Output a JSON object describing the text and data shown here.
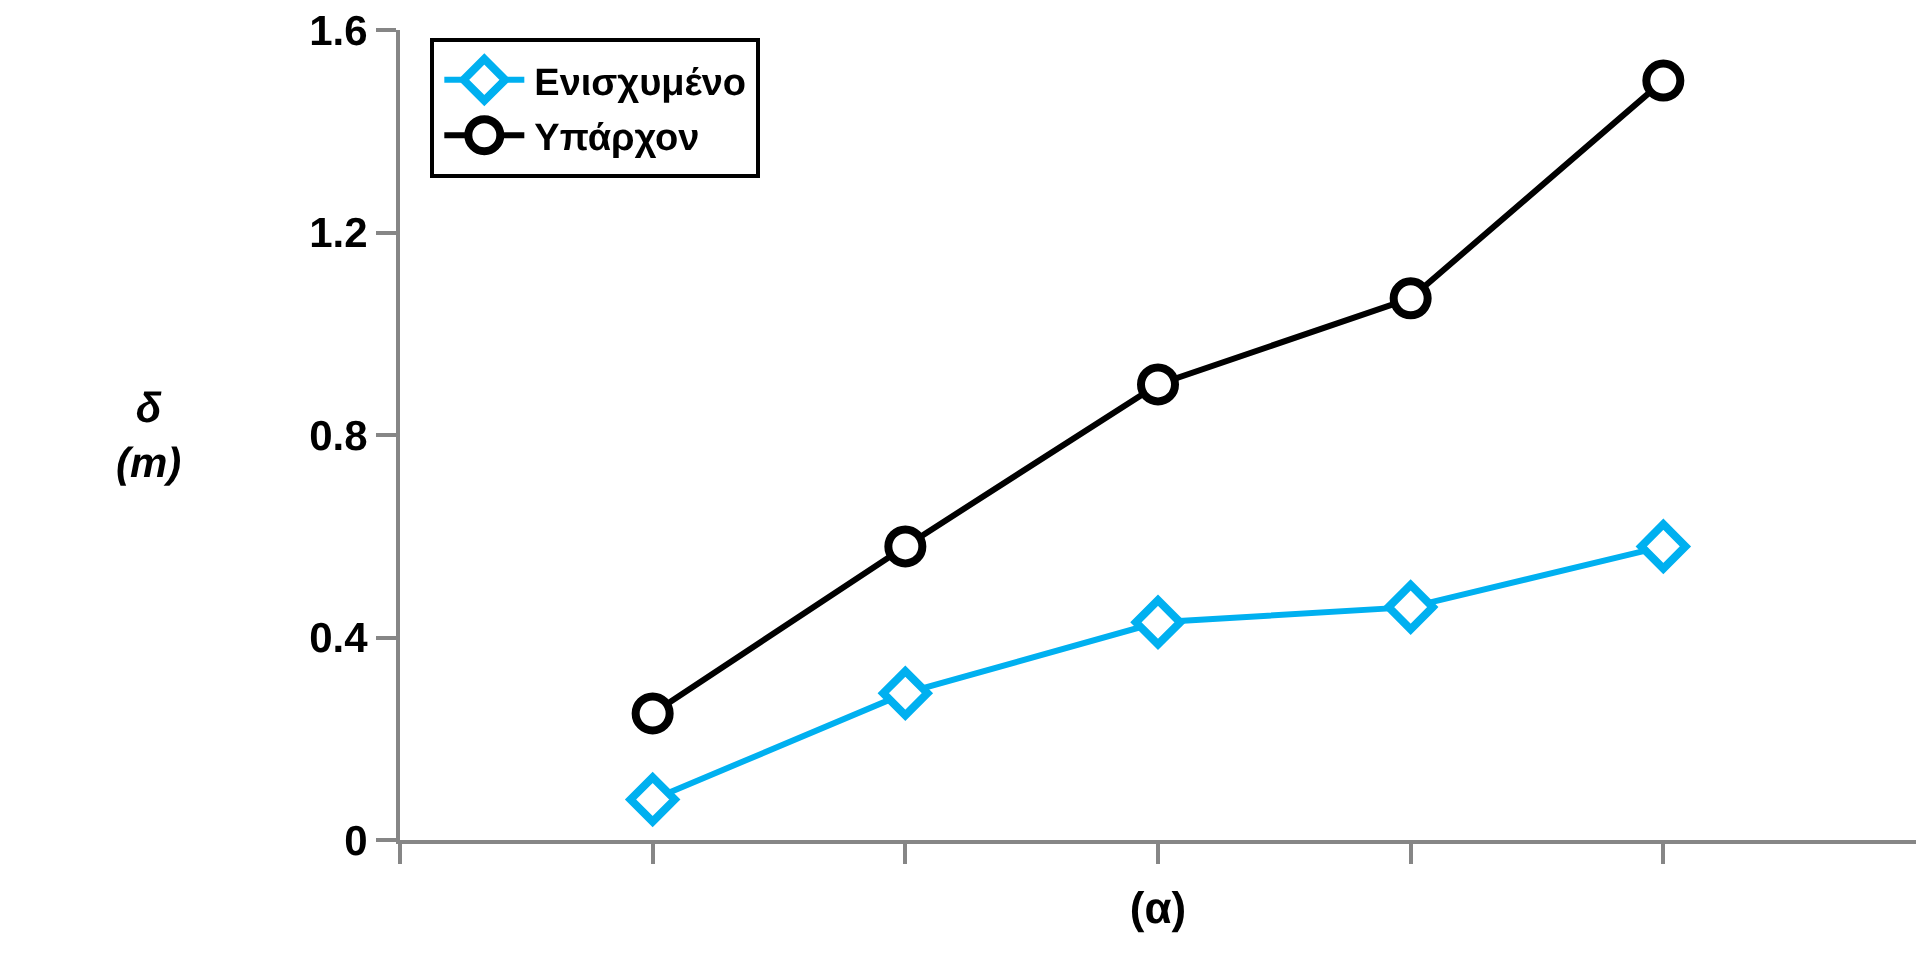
{
  "chart_data": {
    "type": "line",
    "xlabel": "(α)",
    "ylabel": "δ\n(m)",
    "categories": [
      null,
      null,
      null,
      null,
      null
    ],
    "ylim": [
      0,
      1.6
    ],
    "yticks": [
      0,
      0.4,
      0.8,
      1.2,
      1.6
    ],
    "tick_labels": "y",
    "legend": "top left",
    "line_style": "solid",
    "series": [
      {
        "name": "Ενισχυμένο",
        "color": "#00b0f0",
        "marker": "diamond",
        "values": [
          0.08,
          0.29,
          0.43,
          0.46,
          0.58
        ]
      },
      {
        "name": "Υπάρχον",
        "color": "#000000",
        "marker": "circle",
        "values": [
          0.25,
          0.58,
          0.9,
          1.07,
          1.5
        ]
      }
    ]
  }
}
